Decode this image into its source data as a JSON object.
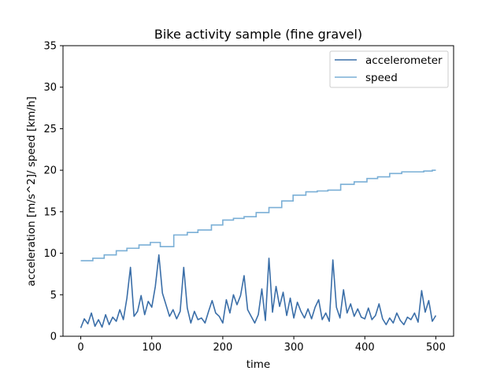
{
  "chart_data": {
    "type": "line",
    "title": "Bike activity sample (fine gravel)",
    "xlabel": "time",
    "ylabel": "acceleration [m/s^2]/ speed [km/h]",
    "xlim": [
      -25,
      525
    ],
    "ylim": [
      0,
      35
    ],
    "x_ticks": [
      0,
      100,
      200,
      300,
      400,
      500
    ],
    "y_ticks": [
      0,
      5,
      10,
      15,
      20,
      25,
      30,
      35
    ],
    "grid": false,
    "legend": {
      "position": "top-right"
    },
    "series": [
      {
        "name": "accelerometer",
        "color": "#3a6ea8",
        "x_start": 0,
        "x_step": 5,
        "values": [
          1.0,
          2.1,
          1.5,
          2.8,
          1.2,
          2.0,
          1.1,
          2.6,
          1.4,
          2.3,
          1.8,
          3.2,
          2.0,
          4.6,
          8.3,
          2.4,
          3.0,
          4.9,
          2.6,
          4.2,
          3.5,
          6.0,
          9.8,
          5.2,
          3.8,
          2.4,
          3.2,
          2.1,
          3.0,
          8.3,
          3.4,
          1.6,
          3.0,
          2.0,
          2.2,
          1.6,
          3.0,
          4.3,
          2.8,
          2.4,
          1.6,
          4.4,
          2.8,
          5.0,
          3.8,
          4.9,
          7.3,
          3.2,
          2.4,
          1.6,
          2.6,
          5.7,
          1.9,
          9.4,
          2.9,
          6.0,
          3.6,
          5.3,
          2.5,
          4.6,
          2.2,
          4.1,
          3.0,
          2.2,
          3.3,
          2.1,
          3.5,
          4.4,
          2.0,
          2.8,
          1.8,
          9.2,
          3.5,
          2.2,
          5.6,
          2.8,
          3.9,
          2.4,
          3.3,
          2.3,
          2.1,
          3.4,
          2.0,
          2.5,
          3.9,
          2.1,
          1.4,
          2.2,
          1.6,
          2.8,
          1.9,
          1.4,
          2.3,
          2.0,
          2.8,
          1.7,
          5.5,
          2.9,
          4.3,
          1.8,
          2.5
        ],
        "peaks": [
          {
            "x": 68,
            "y": 8.3
          },
          {
            "x": 108,
            "y": 9.8
          },
          {
            "x": 137,
            "y": 8.3
          },
          {
            "x": 266,
            "y": 9.4
          },
          {
            "x": 353,
            "y": 9.2
          }
        ]
      },
      {
        "name": "speed",
        "color": "#7aafd6",
        "steps": [
          [
            0,
            9.1
          ],
          [
            17,
            9.4
          ],
          [
            33,
            9.8
          ],
          [
            50,
            10.3
          ],
          [
            65,
            10.6
          ],
          [
            82,
            11.0
          ],
          [
            98,
            11.3
          ],
          [
            112,
            10.8
          ],
          [
            131,
            12.2
          ],
          [
            150,
            12.5
          ],
          [
            165,
            12.8
          ],
          [
            184,
            13.4
          ],
          [
            200,
            14.0
          ],
          [
            215,
            14.2
          ],
          [
            230,
            14.4
          ],
          [
            247,
            14.9
          ],
          [
            265,
            15.5
          ],
          [
            283,
            16.3
          ],
          [
            299,
            17.0
          ],
          [
            317,
            17.4
          ],
          [
            333,
            17.5
          ],
          [
            348,
            17.6
          ],
          [
            366,
            18.3
          ],
          [
            385,
            18.6
          ],
          [
            403,
            19.0
          ],
          [
            418,
            19.2
          ],
          [
            435,
            19.6
          ],
          [
            452,
            19.8
          ],
          [
            483,
            19.9
          ],
          [
            495,
            20.0
          ],
          [
            500,
            20.0
          ]
        ]
      }
    ]
  }
}
